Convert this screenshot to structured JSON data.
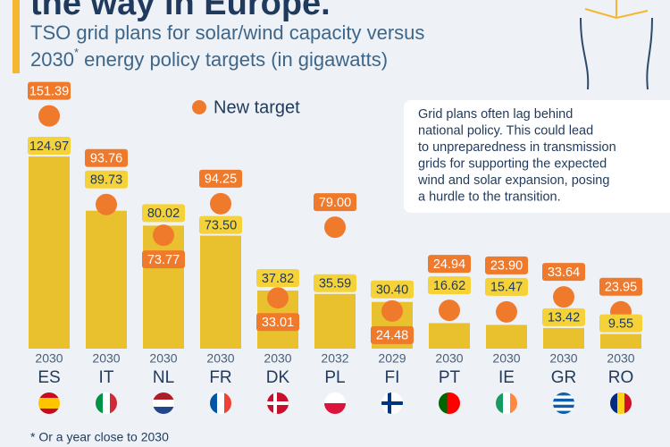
{
  "chart_data": {
    "type": "bar_dot",
    "title": "the way in Europe.",
    "subtitle": [
      "TSO grid plans for solar/wind capacity versus",
      "2030",
      "*",
      " energy policy targets (in gigawatts)"
    ],
    "categories": [
      "ES",
      "IT",
      "NL",
      "FR",
      "DK",
      "PL",
      "FI",
      "PT",
      "IE",
      "GR",
      "RO"
    ],
    "years": [
      "2030",
      "2030",
      "2030",
      "2030",
      "2030",
      "2032",
      "2029",
      "2030",
      "2030",
      "2030",
      "2030"
    ],
    "series": [
      {
        "color": "#e9c12f",
        "values": [
          124.97,
          89.73,
          80.02,
          73.5,
          37.82,
          35.59,
          30.4,
          16.62,
          15.47,
          13.42,
          9.55
        ],
        "value_labels": [
          "124.97",
          "89.73",
          "80.02",
          "73.50",
          "37.82",
          "35.59",
          "30.40",
          "16.62",
          "15.47",
          "13.42",
          "9.55"
        ]
      },
      {
        "name": "New target",
        "color": "#f07a2c",
        "values": [
          151.39,
          93.76,
          73.77,
          94.25,
          33.01,
          79.0,
          24.48,
          24.94,
          23.9,
          33.64,
          23.95
        ],
        "value_labels": [
          "151.39",
          "93.76",
          "73.77",
          "94.25",
          "33.01",
          "79.00",
          "24.48",
          "24.94",
          "23.90",
          "33.64",
          "23.95"
        ]
      }
    ],
    "annotation": [
      "Grid plans often lag behind",
      "national policy. This could lead",
      "to unpreparedness in transmission",
      "grids for supporting the expected",
      "wind and solar expansion, posing",
      "a hurdle to the transition."
    ],
    "footnote": "* Or a year close to 2030"
  }
}
